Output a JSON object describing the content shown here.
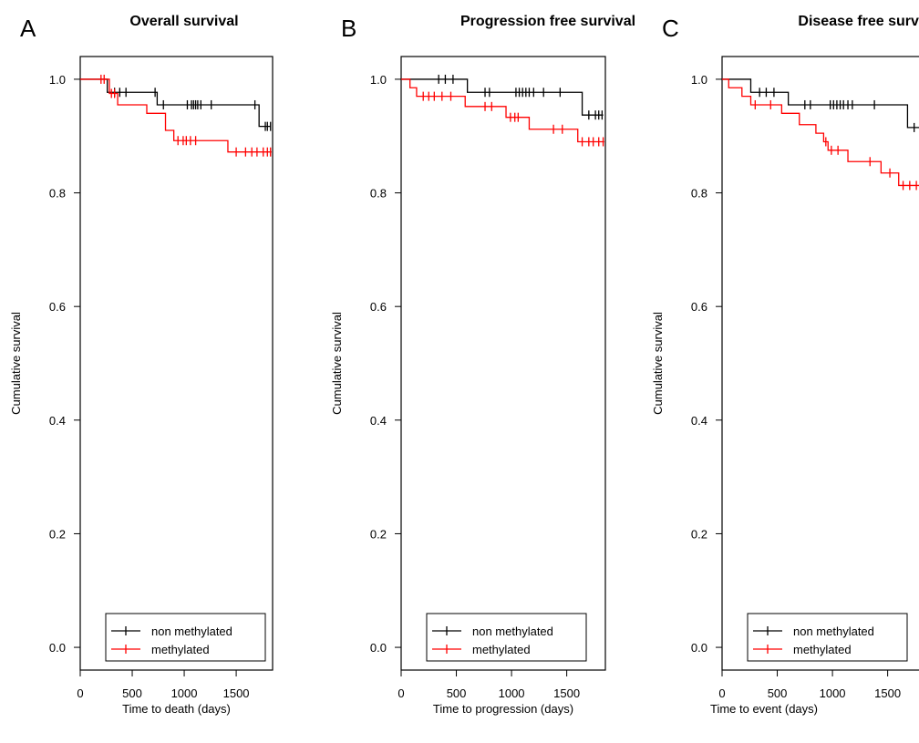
{
  "chart_data": [
    {
      "type": "line",
      "panel_letter": "A",
      "title": "Overall survival",
      "xlabel": "Time to death (days)",
      "ylabel": "Cumulative survival",
      "xlim": [
        0,
        1850
      ],
      "ylim": [
        -0.04,
        1.04
      ],
      "xticks": [
        "0",
        "500",
        "1000",
        "1500"
      ],
      "yticks": [
        "0.0",
        "0.2",
        "0.4",
        "0.6",
        "0.8",
        "1.0"
      ],
      "legend_position": "bottom-center",
      "colors": {
        "non methylated": "#000000",
        "methylated": "#ff0000"
      },
      "series": [
        {
          "name": "non methylated",
          "steps": [
            [
              0,
              1.0
            ],
            [
              260,
              0.977
            ],
            [
              740,
              0.955
            ],
            [
              1720,
              0.917
            ]
          ],
          "end": 1830,
          "censored": [
            [
              330,
              0.977
            ],
            [
              380,
              0.977
            ],
            [
              440,
              0.977
            ],
            [
              720,
              0.977
            ],
            [
              800,
              0.955
            ],
            [
              1030,
              0.955
            ],
            [
              1070,
              0.955
            ],
            [
              1090,
              0.955
            ],
            [
              1110,
              0.955
            ],
            [
              1130,
              0.955
            ],
            [
              1160,
              0.955
            ],
            [
              1260,
              0.955
            ],
            [
              1680,
              0.955
            ],
            [
              1780,
              0.917
            ],
            [
              1800,
              0.917
            ],
            [
              1830,
              0.917
            ]
          ]
        },
        {
          "name": "methylated",
          "steps": [
            [
              0,
              1.0
            ],
            [
              280,
              0.975
            ],
            [
              360,
              0.955
            ],
            [
              640,
              0.94
            ],
            [
              820,
              0.91
            ],
            [
              900,
              0.892
            ],
            [
              1420,
              0.872
            ]
          ],
          "end": 1840,
          "censored": [
            [
              200,
              1.0
            ],
            [
              230,
              1.0
            ],
            [
              300,
              0.975
            ],
            [
              330,
              0.975
            ],
            [
              940,
              0.892
            ],
            [
              990,
              0.892
            ],
            [
              1020,
              0.892
            ],
            [
              1060,
              0.892
            ],
            [
              1110,
              0.892
            ],
            [
              1500,
              0.872
            ],
            [
              1590,
              0.872
            ],
            [
              1650,
              0.872
            ],
            [
              1700,
              0.872
            ],
            [
              1760,
              0.872
            ],
            [
              1800,
              0.872
            ],
            [
              1830,
              0.872
            ]
          ]
        }
      ]
    },
    {
      "type": "line",
      "panel_letter": "B",
      "title": "Progression free survival",
      "xlabel": "Time to progression (days)",
      "ylabel": "Cumulative survival",
      "xlim": [
        0,
        1850
      ],
      "ylim": [
        -0.04,
        1.04
      ],
      "xticks": [
        "0",
        "500",
        "1000",
        "1500"
      ],
      "yticks": [
        "0.0",
        "0.2",
        "0.4",
        "0.6",
        "0.8",
        "1.0"
      ],
      "legend_position": "bottom-center",
      "colors": {
        "non methylated": "#000000",
        "methylated": "#ff0000"
      },
      "series": [
        {
          "name": "non methylated",
          "steps": [
            [
              0,
              1.0
            ],
            [
              600,
              0.977
            ],
            [
              1640,
              0.937
            ]
          ],
          "end": 1830,
          "censored": [
            [
              340,
              1.0
            ],
            [
              400,
              1.0
            ],
            [
              470,
              1.0
            ],
            [
              760,
              0.977
            ],
            [
              800,
              0.977
            ],
            [
              1040,
              0.977
            ],
            [
              1070,
              0.977
            ],
            [
              1100,
              0.977
            ],
            [
              1130,
              0.977
            ],
            [
              1160,
              0.977
            ],
            [
              1200,
              0.977
            ],
            [
              1290,
              0.977
            ],
            [
              1440,
              0.977
            ],
            [
              1700,
              0.937
            ],
            [
              1760,
              0.937
            ],
            [
              1790,
              0.937
            ],
            [
              1820,
              0.937
            ]
          ]
        },
        {
          "name": "methylated",
          "steps": [
            [
              0,
              1.0
            ],
            [
              80,
              0.985
            ],
            [
              140,
              0.97
            ],
            [
              580,
              0.952
            ],
            [
              950,
              0.933
            ],
            [
              1160,
              0.912
            ],
            [
              1600,
              0.89
            ]
          ],
          "end": 1840,
          "censored": [
            [
              200,
              0.97
            ],
            [
              250,
              0.97
            ],
            [
              300,
              0.97
            ],
            [
              370,
              0.97
            ],
            [
              450,
              0.97
            ],
            [
              760,
              0.952
            ],
            [
              820,
              0.952
            ],
            [
              990,
              0.933
            ],
            [
              1030,
              0.933
            ],
            [
              1060,
              0.933
            ],
            [
              1380,
              0.912
            ],
            [
              1460,
              0.912
            ],
            [
              1640,
              0.89
            ],
            [
              1700,
              0.89
            ],
            [
              1740,
              0.89
            ],
            [
              1790,
              0.89
            ],
            [
              1830,
              0.89
            ]
          ]
        }
      ]
    },
    {
      "type": "line",
      "panel_letter": "C",
      "title": "Disease free survival",
      "xlabel": "Time to event (days)",
      "ylabel": "Cumulative survival",
      "xlim": [
        0,
        1850
      ],
      "ylim": [
        -0.04,
        1.04
      ],
      "xticks": [
        "0",
        "500",
        "1000",
        "1500"
      ],
      "yticks": [
        "0.0",
        "0.2",
        "0.4",
        "0.6",
        "0.8",
        "1.0"
      ],
      "legend_position": "bottom-center",
      "colors": {
        "non methylated": "#000000",
        "methylated": "#ff0000"
      },
      "series": [
        {
          "name": "non methylated",
          "steps": [
            [
              0,
              1.0
            ],
            [
              260,
              0.977
            ],
            [
              600,
              0.955
            ],
            [
              1680,
              0.915
            ]
          ],
          "end": 1830,
          "censored": [
            [
              340,
              0.977
            ],
            [
              400,
              0.977
            ],
            [
              470,
              0.977
            ],
            [
              750,
              0.955
            ],
            [
              800,
              0.955
            ],
            [
              980,
              0.955
            ],
            [
              1010,
              0.955
            ],
            [
              1040,
              0.955
            ],
            [
              1070,
              0.955
            ],
            [
              1100,
              0.955
            ],
            [
              1140,
              0.955
            ],
            [
              1180,
              0.955
            ],
            [
              1380,
              0.955
            ],
            [
              1740,
              0.915
            ],
            [
              1800,
              0.915
            ]
          ]
        },
        {
          "name": "methylated",
          "steps": [
            [
              0,
              1.0
            ],
            [
              60,
              0.985
            ],
            [
              180,
              0.97
            ],
            [
              260,
              0.955
            ],
            [
              540,
              0.94
            ],
            [
              700,
              0.92
            ],
            [
              850,
              0.905
            ],
            [
              920,
              0.89
            ],
            [
              960,
              0.875
            ],
            [
              1140,
              0.855
            ],
            [
              1440,
              0.835
            ],
            [
              1600,
              0.813
            ]
          ],
          "end": 1840,
          "censored": [
            [
              300,
              0.955
            ],
            [
              440,
              0.955
            ],
            [
              940,
              0.89
            ],
            [
              990,
              0.875
            ],
            [
              1050,
              0.875
            ],
            [
              1340,
              0.855
            ],
            [
              1520,
              0.835
            ],
            [
              1640,
              0.813
            ],
            [
              1700,
              0.813
            ],
            [
              1760,
              0.813
            ],
            [
              1810,
              0.813
            ]
          ]
        }
      ]
    }
  ]
}
